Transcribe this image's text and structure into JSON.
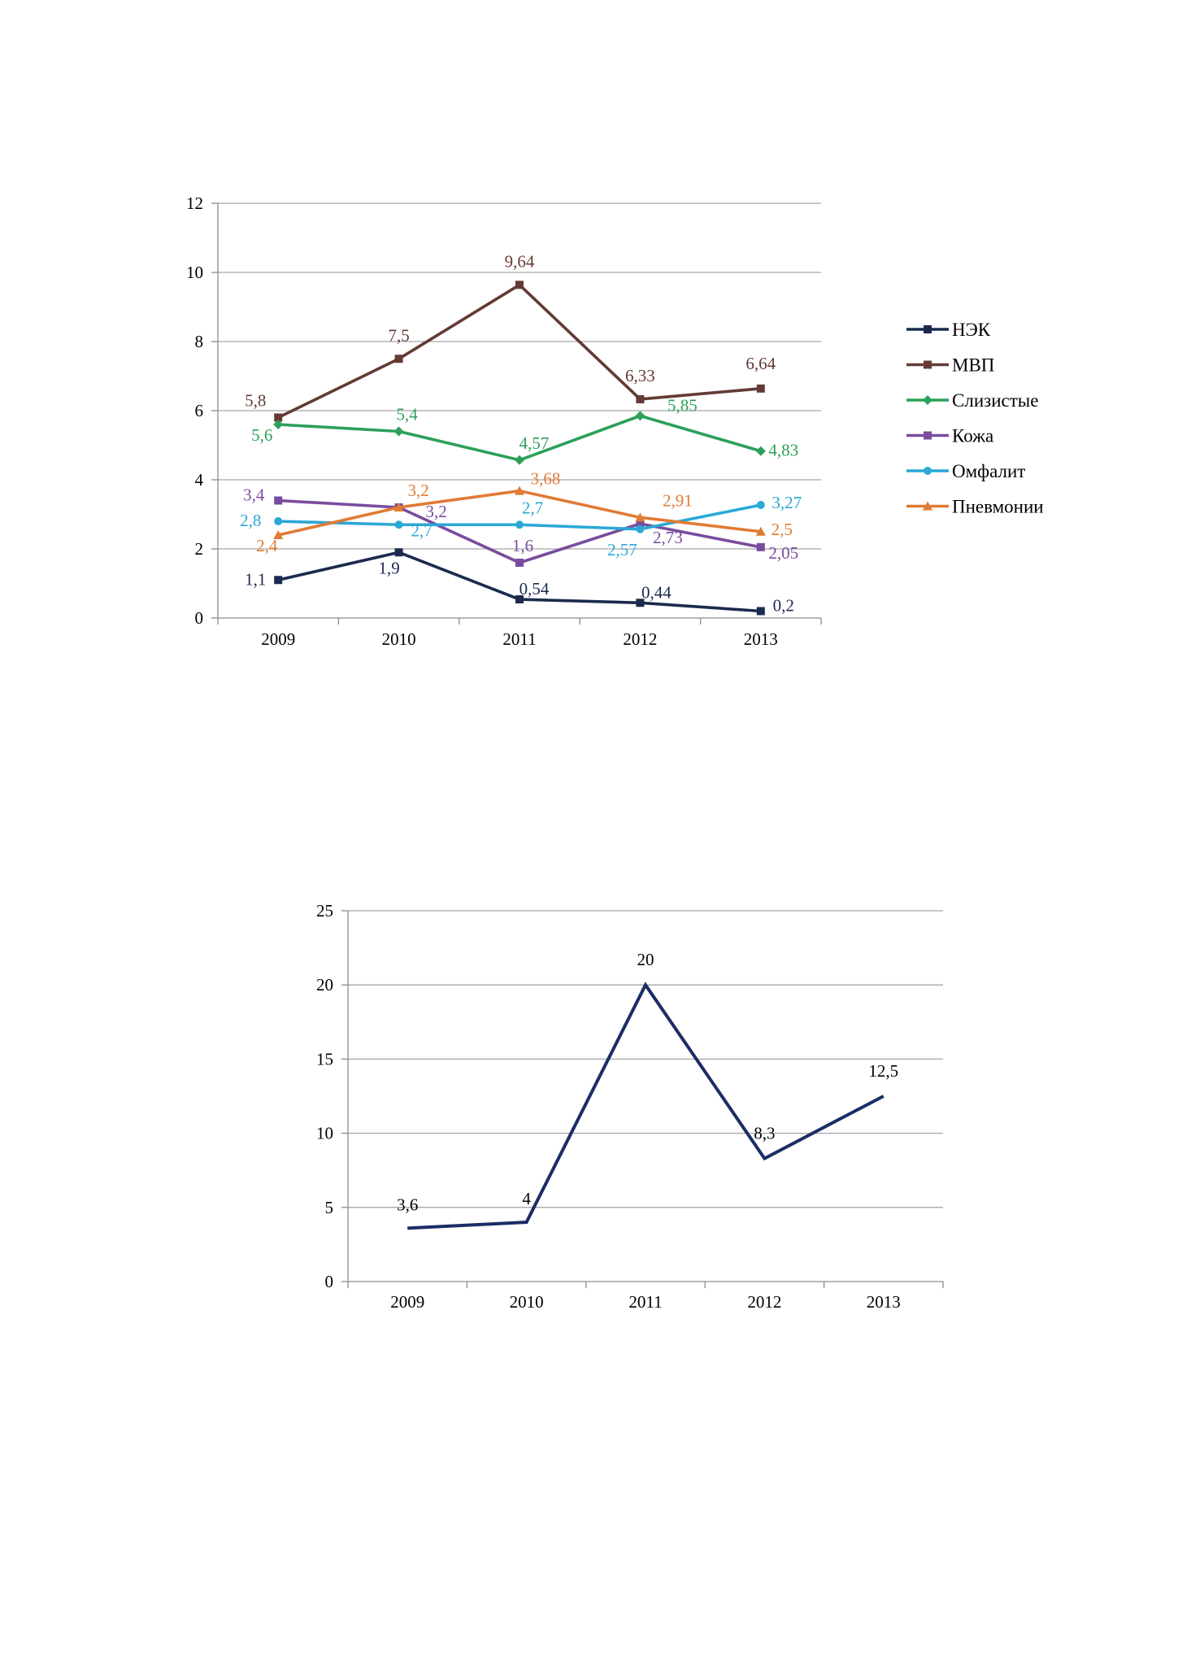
{
  "chart_data": [
    {
      "type": "line",
      "categories": [
        "2009",
        "2010",
        "2011",
        "2012",
        "2013"
      ],
      "ylim": [
        0,
        12
      ],
      "yticks": [
        0,
        2,
        4,
        6,
        8,
        10,
        12
      ],
      "grid": true,
      "legend_position": "right",
      "series": [
        {
          "name": "НЭК",
          "values": [
            1.1,
            1.9,
            0.54,
            0.44,
            0.2
          ],
          "labels": [
            "1,1",
            "1,9",
            "0,54",
            "0,44",
            "0,2"
          ],
          "color": "#1b2a4e",
          "marker": "square"
        },
        {
          "name": "МВП",
          "values": [
            5.8,
            7.5,
            9.64,
            6.33,
            6.64
          ],
          "labels": [
            "5,8",
            "7,5",
            "9,64",
            "6,33",
            "6,64"
          ],
          "color": "#643a35",
          "marker": "square"
        },
        {
          "name": "Слизистые",
          "values": [
            5.6,
            5.4,
            4.57,
            5.85,
            4.83
          ],
          "labels": [
            "5,6",
            "5,4",
            "4,57",
            "5,85",
            "4,83"
          ],
          "color": "#2ca05a",
          "marker": "diamond"
        },
        {
          "name": "Кожа",
          "values": [
            3.4,
            3.2,
            1.6,
            2.73,
            2.05
          ],
          "labels": [
            "3,4",
            "3,2",
            "1,6",
            "2,73",
            "2,05"
          ],
          "color": "#7a4c9e",
          "marker": "square"
        },
        {
          "name": "Омфалит",
          "values": [
            2.8,
            2.7,
            2.7,
            2.57,
            3.27
          ],
          "labels": [
            "2,8",
            "2,7",
            "2,7",
            "2,57",
            "3,27"
          ],
          "color": "#2aa8d6",
          "marker": "circle"
        },
        {
          "name": "Пневмонии",
          "values": [
            2.4,
            3.2,
            3.68,
            2.91,
            2.5
          ],
          "labels": [
            "2,4",
            "3,2",
            "3,68",
            "2,91",
            "2,5"
          ],
          "color": "#e07b35",
          "marker": "triangle"
        }
      ]
    },
    {
      "type": "line",
      "categories": [
        "2009",
        "2010",
        "2011",
        "2012",
        "2013"
      ],
      "ylim": [
        0,
        25
      ],
      "yticks": [
        0,
        5,
        10,
        15,
        20,
        25
      ],
      "grid": true,
      "series": [
        {
          "values": [
            3.6,
            4,
            20,
            8.3,
            12.5
          ],
          "labels": [
            "3,6",
            "4",
            "20",
            "8,3",
            "12,5"
          ],
          "color": "#1b2d66",
          "marker": "none"
        }
      ]
    }
  ]
}
